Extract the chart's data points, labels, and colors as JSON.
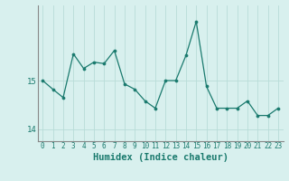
{
  "x": [
    0,
    1,
    2,
    3,
    4,
    5,
    6,
    7,
    8,
    9,
    10,
    11,
    12,
    13,
    14,
    15,
    16,
    17,
    18,
    19,
    20,
    21,
    22,
    23
  ],
  "y": [
    15.0,
    14.82,
    14.65,
    15.55,
    15.25,
    15.38,
    15.35,
    15.62,
    14.93,
    14.82,
    14.58,
    14.43,
    15.0,
    15.0,
    15.52,
    16.22,
    14.88,
    14.43,
    14.43,
    14.43,
    14.58,
    14.28,
    14.28,
    14.43
  ],
  "line_color": "#1a7a6e",
  "marker_color": "#1a7a6e",
  "bg_color": "#d8f0ee",
  "grid_color": "#b8dcd8",
  "xlabel": "Humidex (Indice chaleur)",
  "ylim_min": 13.75,
  "ylim_max": 16.55,
  "xlabel_fontsize": 7.5
}
